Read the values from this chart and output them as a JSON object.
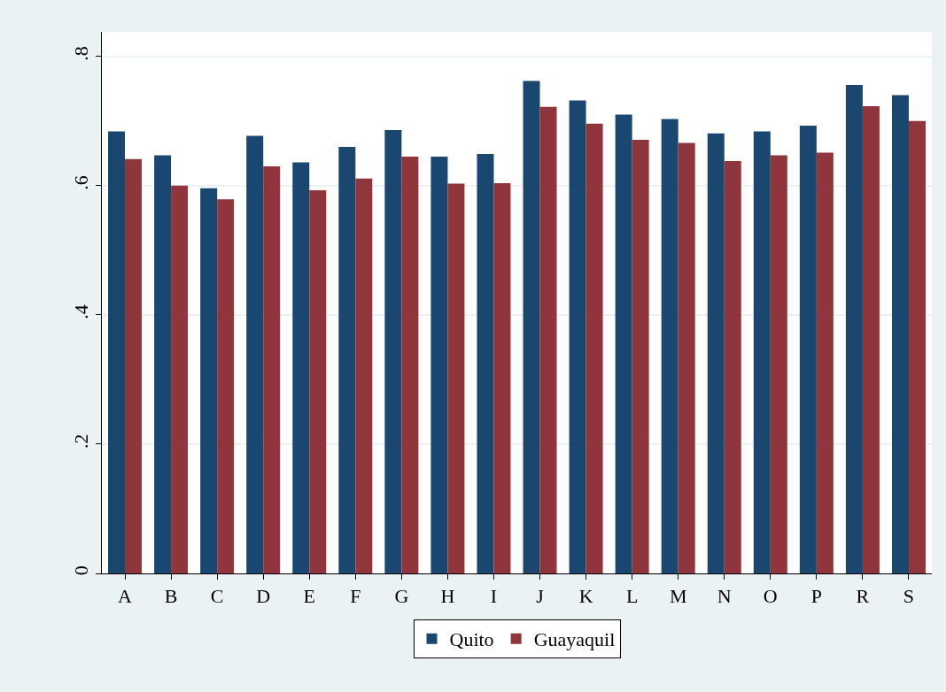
{
  "chart_data": {
    "type": "bar",
    "categories": [
      "A",
      "B",
      "C",
      "D",
      "E",
      "F",
      "G",
      "H",
      "I",
      "J",
      "K",
      "L",
      "M",
      "N",
      "O",
      "P",
      "R",
      "S"
    ],
    "series": [
      {
        "name": "Quito",
        "color": "#1a476f",
        "values": [
          0.684,
          0.647,
          0.596,
          0.677,
          0.636,
          0.66,
          0.686,
          0.645,
          0.649,
          0.762,
          0.732,
          0.71,
          0.703,
          0.681,
          0.684,
          0.693,
          0.756,
          0.74
        ]
      },
      {
        "name": "Guayaquil",
        "color": "#90353b",
        "values": [
          0.641,
          0.6,
          0.579,
          0.63,
          0.593,
          0.611,
          0.645,
          0.603,
          0.604,
          0.722,
          0.696,
          0.671,
          0.666,
          0.638,
          0.647,
          0.651,
          0.723,
          0.7
        ]
      }
    ],
    "ylim": [
      0,
      0.838
    ],
    "yticks": [
      0,
      {
        "value": 0.2,
        "label": ".2"
      },
      {
        "value": 0.4,
        "label": ".4"
      },
      {
        "value": 0.6,
        "label": ".6"
      },
      {
        "value": 0.8,
        "label": ".8"
      }
    ],
    "grid": "y",
    "legend": "bottom"
  }
}
